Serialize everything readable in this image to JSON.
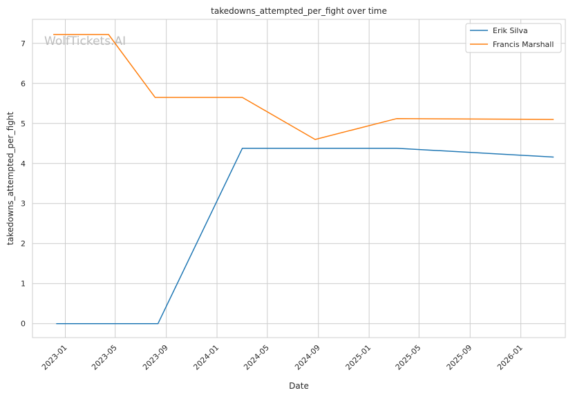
{
  "chart_data": {
    "type": "line",
    "title": "takedowns_attempted_per_fight over time",
    "xlabel": "Date",
    "ylabel": "takedowns_attempted_per_fight",
    "watermark": "WolfTickets.AI",
    "x_ticks": [
      "2023-01",
      "2023-05",
      "2023-09",
      "2024-01",
      "2024-05",
      "2024-09",
      "2025-01",
      "2025-05",
      "2025-09",
      "2026-01"
    ],
    "y_ticks": [
      0,
      1,
      2,
      3,
      4,
      5,
      6,
      7
    ],
    "ylim": [
      -0.35,
      7.6
    ],
    "xlim": [
      "2022-10-14",
      "2026-04-18"
    ],
    "grid": true,
    "legend_position": "top-right",
    "series": [
      {
        "name": "Erik Silva",
        "color": "#1f77b4",
        "points": [
          {
            "x": "2022-12-10",
            "y": 0
          },
          {
            "x": "2023-08-12",
            "y": 0
          },
          {
            "x": "2024-03-02",
            "y": 4.38
          },
          {
            "x": "2025-03-08",
            "y": 4.38
          },
          {
            "x": "2026-03-21",
            "y": 4.16
          }
        ]
      },
      {
        "name": "Francis Marshall",
        "color": "#ff7f0e",
        "points": [
          {
            "x": "2022-12-03",
            "y": 7.22
          },
          {
            "x": "2023-04-15",
            "y": 7.22
          },
          {
            "x": "2023-08-05",
            "y": 5.65
          },
          {
            "x": "2024-03-02",
            "y": 5.65
          },
          {
            "x": "2024-08-24",
            "y": 4.6
          },
          {
            "x": "2025-03-08",
            "y": 5.12
          },
          {
            "x": "2026-03-21",
            "y": 5.1
          }
        ]
      }
    ]
  }
}
